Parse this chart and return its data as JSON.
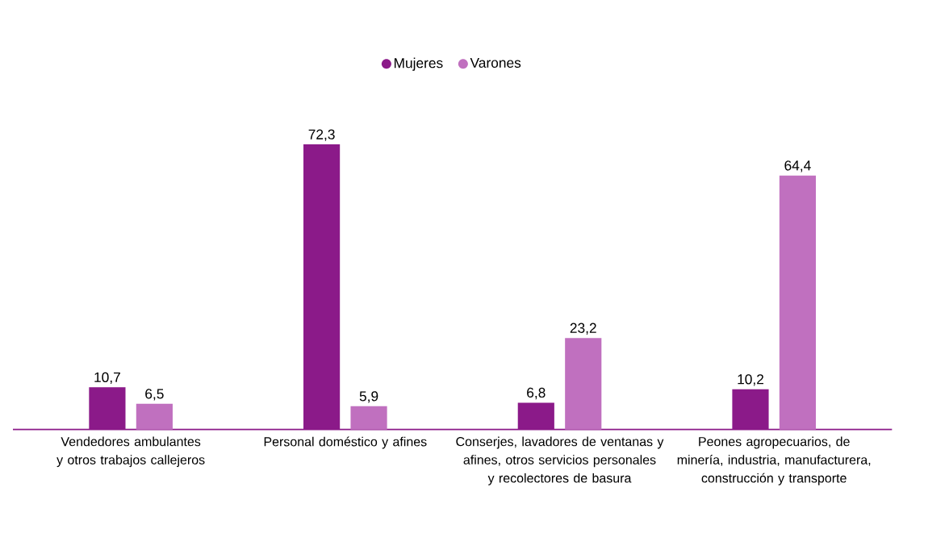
{
  "chart_data": {
    "type": "bar",
    "categories": [
      "Vendedores ambulantes y otros trabajos callejeros",
      "Personal doméstico y afines",
      "Conserjes, lavadores de ventanas y afines, otros servicios personales y recolectores de basura",
      "Peones agropecuarios, de minería, industria, manufacturera, construcción y transporte"
    ],
    "series": [
      {
        "name": "Mujeres",
        "color": "#8b1a89",
        "values": [
          10.7,
          72.3,
          6.8,
          10.2
        ],
        "value_labels": [
          "10,7",
          "72,3",
          "6,8",
          "10,2"
        ]
      },
      {
        "name": "Varones",
        "color": "#c070bf",
        "values": [
          6.5,
          5.9,
          23.2,
          64.4
        ],
        "value_labels": [
          "6,5",
          "5,9",
          "23,2",
          "64,4"
        ]
      }
    ],
    "legend": "top"
  }
}
